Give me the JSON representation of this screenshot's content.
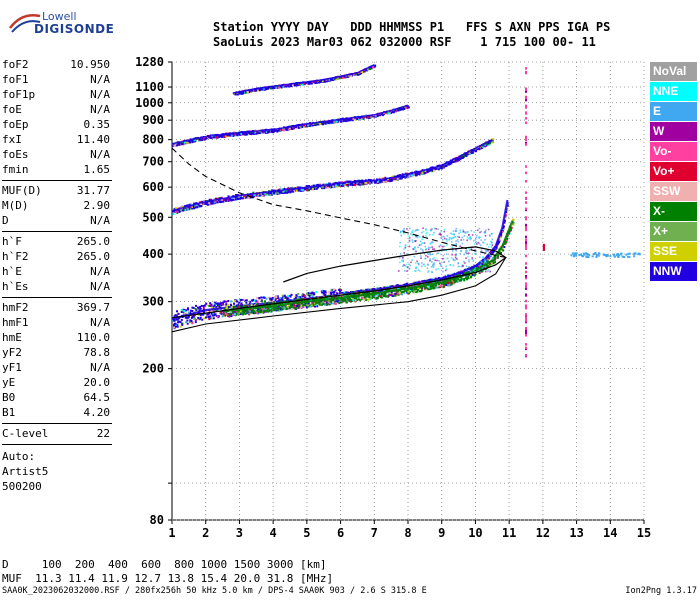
{
  "logo": {
    "line1": "Lowell",
    "line2": "DIGISONDE"
  },
  "header": {
    "line1": "Station YYYY DAY   DDD HHMMSS P1   FFS S AXN PPS IGA PS",
    "line2": "SaoLuis 2023 Mar03 062 032000 RSF    1 715 100 00- 11"
  },
  "params": {
    "group1": [
      {
        "k": "foF2",
        "v": "10.950"
      },
      {
        "k": "foF1",
        "v": "N/A"
      },
      {
        "k": "foF1p",
        "v": "N/A"
      },
      {
        "k": "foE",
        "v": "N/A"
      },
      {
        "k": "foEp",
        "v": "0.35"
      },
      {
        "k": "fxI",
        "v": "11.40"
      },
      {
        "k": "foEs",
        "v": "N/A"
      },
      {
        "k": "fmin",
        "v": "1.65"
      }
    ],
    "group2": [
      {
        "k": "MUF(D)",
        "v": "31.77"
      },
      {
        "k": "M(D)",
        "v": "2.90"
      },
      {
        "k": "D",
        "v": "N/A"
      }
    ],
    "group3": [
      {
        "k": "h`F",
        "v": "265.0"
      },
      {
        "k": "h`F2",
        "v": "265.0"
      },
      {
        "k": "h`E",
        "v": "N/A"
      },
      {
        "k": "h`Es",
        "v": "N/A"
      }
    ],
    "group4": [
      {
        "k": "hmF2",
        "v": "369.7"
      },
      {
        "k": "hmF1",
        "v": "N/A"
      },
      {
        "k": "hmE",
        "v": "110.0"
      },
      {
        "k": "yF2",
        "v": "78.8"
      },
      {
        "k": "yF1",
        "v": "N/A"
      },
      {
        "k": "yE",
        "v": "20.0"
      },
      {
        "k": "B0",
        "v": "64.5"
      },
      {
        "k": "B1",
        "v": "4.20"
      }
    ],
    "group5": [
      {
        "k": "C-level",
        "v": "22"
      }
    ],
    "auto": [
      "Auto:",
      "Artist5",
      "500200"
    ]
  },
  "legend": [
    {
      "label": "NoVal",
      "color": "#a0a0a0"
    },
    {
      "label": "NNE",
      "color": "#00ffff"
    },
    {
      "label": "E",
      "color": "#40a8f0"
    },
    {
      "label": "W",
      "color": "#a000a0"
    },
    {
      "label": "Vo-",
      "color": "#ff40a0"
    },
    {
      "label": "Vo+",
      "color": "#e00030"
    },
    {
      "label": "SSW",
      "color": "#f0b0b0"
    },
    {
      "label": "X-",
      "color": "#008000"
    },
    {
      "label": "X+",
      "color": "#70b050"
    },
    {
      "label": "SSE",
      "color": "#d0d000"
    },
    {
      "label": "NNW",
      "color": "#2000e0"
    }
  ],
  "bottom": {
    "line1": "D     100  200  400  600  800 1000 1500 3000 [km]",
    "line2": "MUF  11.3 11.4 11.9 12.7 13.8 15.4 20.0 31.8 [MHz]"
  },
  "footer": "SAA0K_2023062032000.RSF / 280fx256h 50 kHz 5.0 km / DPS-4 SAA0K 903 / 2.6 S 315.8 E",
  "version": "Ion2Png 1.3.17",
  "chart_data": {
    "type": "scatter",
    "xlim": [
      1,
      15
    ],
    "ylim": [
      80,
      1280
    ],
    "y_scale": "log",
    "x_ticks": [
      1,
      2,
      3,
      4,
      5,
      6,
      7,
      8,
      9,
      10,
      11,
      12,
      13,
      14,
      15
    ],
    "y_ticks": [
      80,
      100,
      200,
      300,
      400,
      500,
      600,
      700,
      800,
      900,
      1000,
      1100,
      1280
    ],
    "y_labeled_ticks": [
      80,
      200,
      300,
      400,
      500,
      600,
      700,
      800,
      900,
      1000,
      1100,
      1280
    ],
    "grid": true,
    "traces": [
      {
        "name": "o-trace",
        "color": "#2000e0",
        "x": [
          1.0,
          2,
          3,
          4,
          5,
          6,
          7,
          8,
          9,
          9.5,
          10,
          10.3,
          10.6,
          10.8,
          10.95
        ],
        "y": [
          270,
          285,
          292,
          298,
          305,
          313,
          322,
          332,
          345,
          356,
          372,
          390,
          420,
          470,
          555
        ]
      },
      {
        "name": "o-trace-2hop",
        "color": "#2000e0",
        "x": [
          1.0,
          2,
          3,
          4,
          5,
          6,
          7,
          7.5,
          8,
          8.5,
          9,
          9.5,
          10,
          10.5
        ],
        "y": [
          520,
          550,
          570,
          585,
          600,
          615,
          625,
          635,
          650,
          665,
          685,
          720,
          760,
          800
        ]
      },
      {
        "name": "o-trace-3hop",
        "color": "#2000e0",
        "x": [
          1.0,
          2,
          3,
          4,
          5,
          6,
          7,
          7.5,
          8
        ],
        "y": [
          780,
          815,
          835,
          850,
          880,
          905,
          930,
          955,
          985
        ]
      },
      {
        "name": "o-trace-4hop",
        "color": "#2000e0",
        "x": [
          2.8,
          3.5,
          4.5,
          5.5,
          6.5,
          7
        ],
        "y": [
          1060,
          1090,
          1120,
          1150,
          1200,
          1260
        ]
      },
      {
        "name": "x-trace",
        "color": "#008000",
        "x": [
          2.5,
          4,
          5,
          6,
          7,
          8,
          9,
          9.5,
          10,
          10.5,
          10.8,
          11.1
        ],
        "y": [
          283,
          293,
          300,
          307,
          315,
          325,
          337,
          347,
          362,
          385,
          420,
          490
        ]
      }
    ],
    "scattered_points": [
      {
        "x": 11.5,
        "y_range": [
          210,
          1260
        ],
        "color": "#ff40a0"
      },
      {
        "x": 12.0,
        "y_range": [
          415,
          430
        ],
        "color": "#e00030"
      },
      {
        "x": [
          12.8,
          14.9
        ],
        "y": 400,
        "color": "#40a8f0"
      }
    ]
  }
}
